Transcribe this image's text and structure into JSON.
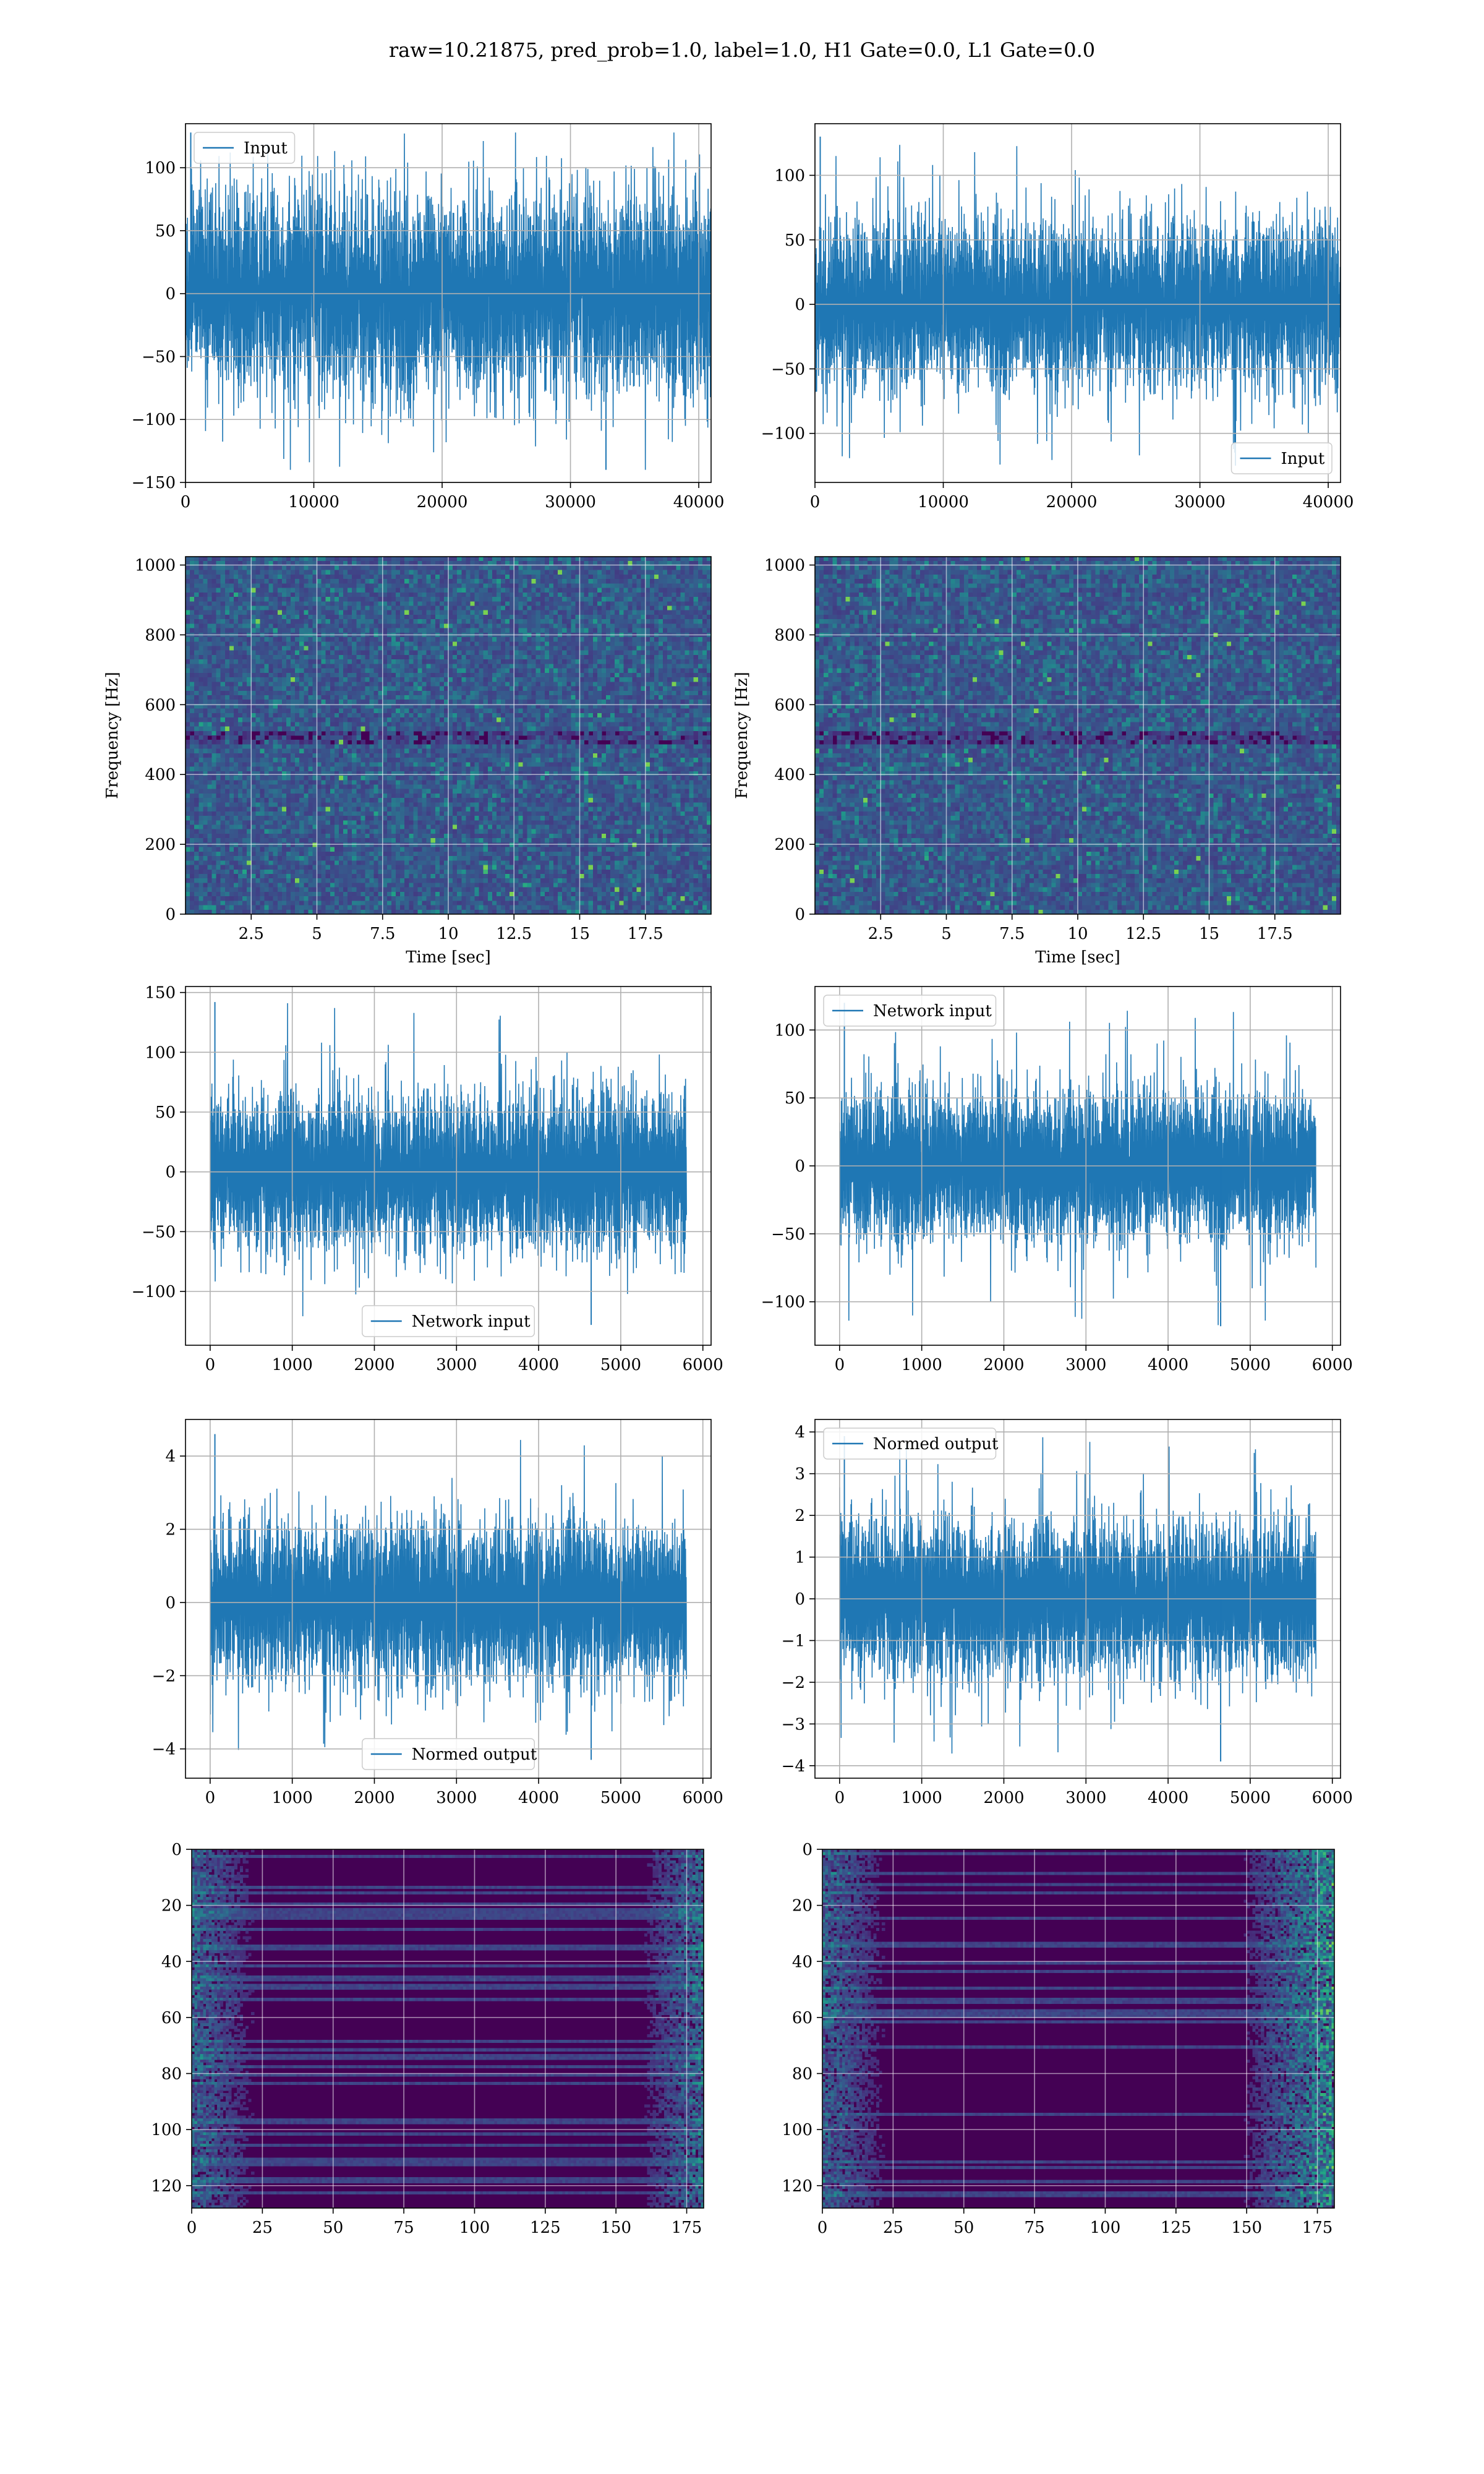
{
  "figure": {
    "title": "raw=10.21875, pred_prob=1.0, label=1.0, H1 Gate=0.0, L1 Gate=0.0"
  },
  "colors": {
    "line": "#1f77b4",
    "grid": "#b0b0b0",
    "viridis_low": "#440154",
    "viridis_mid": "#21918c",
    "viridis_high": "#fde725"
  },
  "chart_data": [
    {
      "id": "input-h1",
      "type": "line",
      "legend": [
        "Input"
      ],
      "legend_loc": "upper left",
      "xlim": [
        0,
        40960
      ],
      "ylim": [
        -150,
        135
      ],
      "xticks": [
        0,
        10000,
        20000,
        30000,
        40000
      ],
      "yticks": [
        -150,
        -100,
        -50,
        0,
        50,
        100
      ],
      "series": [
        {
          "name": "Input",
          "n": 40960,
          "center": 0,
          "typical_amp": 75,
          "max": 128,
          "min": -140
        }
      ],
      "grid": true
    },
    {
      "id": "input-l1",
      "type": "line",
      "legend": [
        "Input"
      ],
      "legend_loc": "lower right",
      "xlim": [
        0,
        40960
      ],
      "ylim": [
        -138,
        140
      ],
      "xticks": [
        0,
        10000,
        20000,
        30000,
        40000
      ],
      "yticks": [
        -100,
        -50,
        0,
        50,
        100
      ],
      "series": [
        {
          "name": "Input",
          "n": 40960,
          "center": 0,
          "typical_amp": 60,
          "max": 130,
          "min": -125
        }
      ],
      "grid": true
    },
    {
      "id": "spectrogram-h1",
      "type": "heatmap",
      "xlabel": "Time [sec]",
      "ylabel": "Frequency [Hz]",
      "xlim": [
        0,
        20
      ],
      "ylim": [
        0,
        1024
      ],
      "xticks": [
        2.5,
        5.0,
        7.5,
        10.0,
        12.5,
        15.0,
        17.5
      ],
      "yticks": [
        0,
        200,
        400,
        600,
        800,
        1000
      ],
      "colormap": "viridis",
      "grid": true
    },
    {
      "id": "spectrogram-l1",
      "type": "heatmap",
      "xlabel": "Time [sec]",
      "ylabel": "Frequency [Hz]",
      "xlim": [
        0,
        20
      ],
      "ylim": [
        0,
        1024
      ],
      "xticks": [
        2.5,
        5.0,
        7.5,
        10.0,
        12.5,
        15.0,
        17.5
      ],
      "yticks": [
        0,
        200,
        400,
        600,
        800,
        1000
      ],
      "colormap": "viridis",
      "grid": true
    },
    {
      "id": "network-input-h1",
      "type": "line",
      "legend": [
        "Network input"
      ],
      "legend_loc": "lower center",
      "xlim": [
        -300,
        6100
      ],
      "ylim": [
        -145,
        155
      ],
      "xticks": [
        0,
        1000,
        2000,
        3000,
        4000,
        5000,
        6000
      ],
      "yticks": [
        -100,
        -50,
        0,
        50,
        100,
        150
      ],
      "series": [
        {
          "name": "Network input",
          "n": 5800,
          "center": 0,
          "typical_amp": 60,
          "max": 142,
          "min": -128
        }
      ],
      "grid": true
    },
    {
      "id": "network-input-l1",
      "type": "line",
      "legend": [
        "Network input"
      ],
      "legend_loc": "upper left",
      "xlim": [
        -300,
        6100
      ],
      "ylim": [
        -132,
        132
      ],
      "xticks": [
        0,
        1000,
        2000,
        3000,
        4000,
        5000,
        6000
      ],
      "yticks": [
        -100,
        -50,
        0,
        50,
        100
      ],
      "series": [
        {
          "name": "Network input",
          "n": 5800,
          "center": 0,
          "typical_amp": 50,
          "max": 120,
          "min": -118
        }
      ],
      "grid": true
    },
    {
      "id": "normed-output-h1",
      "type": "line",
      "legend": [
        "Normed output"
      ],
      "legend_loc": "lower center",
      "xlim": [
        -300,
        6100
      ],
      "ylim": [
        -4.8,
        5.0
      ],
      "xticks": [
        0,
        1000,
        2000,
        3000,
        4000,
        5000,
        6000
      ],
      "yticks": [
        -4,
        -2,
        0,
        2,
        4
      ],
      "series": [
        {
          "name": "Normed output",
          "n": 5800,
          "center": 0,
          "typical_amp": 2,
          "max": 4.6,
          "min": -4.3
        }
      ],
      "grid": true
    },
    {
      "id": "normed-output-l1",
      "type": "line",
      "legend": [
        "Normed output"
      ],
      "legend_loc": "upper left",
      "xlim": [
        -300,
        6100
      ],
      "ylim": [
        -4.3,
        4.3
      ],
      "xticks": [
        0,
        1000,
        2000,
        3000,
        4000,
        5000,
        6000
      ],
      "yticks": [
        -4,
        -3,
        -2,
        -1,
        0,
        1,
        2,
        3,
        4
      ],
      "series": [
        {
          "name": "Normed output",
          "n": 5800,
          "center": 0,
          "typical_amp": 1.7,
          "max": 3.9,
          "min": -3.9
        }
      ],
      "grid": true
    },
    {
      "id": "feature-map-h1",
      "type": "heatmap",
      "xlim": [
        0,
        181
      ],
      "ylim": [
        128,
        0
      ],
      "xticks": [
        0,
        25,
        50,
        75,
        100,
        125,
        150,
        175
      ],
      "yticks": [
        0,
        20,
        40,
        60,
        80,
        100,
        120
      ],
      "colormap": "viridis",
      "grid": true,
      "bright_regions": [
        "left edge columns 0-30",
        "right edge columns 160-181"
      ]
    },
    {
      "id": "feature-map-l1",
      "type": "heatmap",
      "xlim": [
        0,
        181
      ],
      "ylim": [
        128,
        0
      ],
      "xticks": [
        0,
        25,
        50,
        75,
        100,
        125,
        150,
        175
      ],
      "yticks": [
        0,
        20,
        40,
        60,
        80,
        100,
        120
      ],
      "colormap": "viridis",
      "grid": true,
      "bright_regions": [
        "left edge columns 0-30",
        "right edge columns 150-181"
      ]
    }
  ]
}
